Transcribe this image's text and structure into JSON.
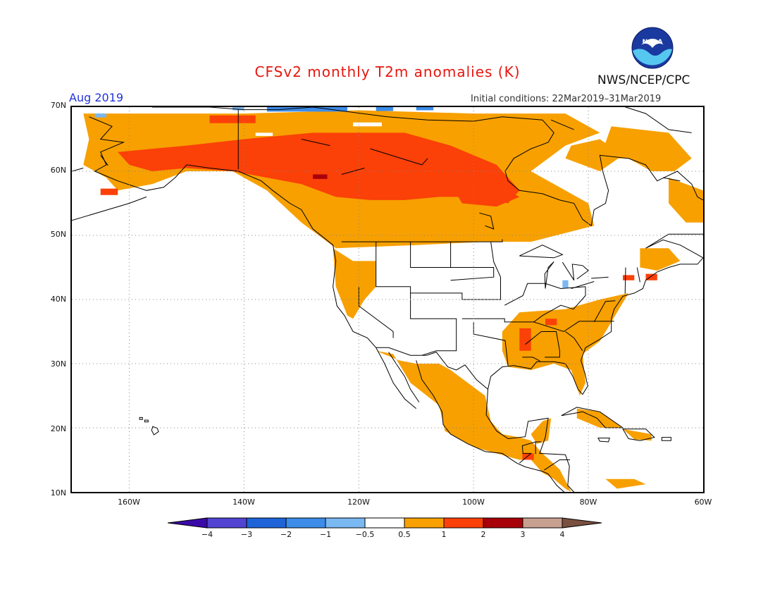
{
  "header": {
    "title": "CFSv2 monthly T2m anomalies (K)",
    "agency": "NWS/NCEP/CPC",
    "logo_text": "NOAA",
    "valid_month": "Aug 2019",
    "initial_conditions": "Initial conditions: 22Mar2019–31Mar2019"
  },
  "axes": {
    "lat_labels": [
      "70N",
      "60N",
      "50N",
      "40N",
      "30N",
      "20N",
      "10N"
    ],
    "lon_labels": [
      "160W",
      "140W",
      "120W",
      "100W",
      "80W",
      "60W"
    ]
  },
  "colorbar": {
    "labels": [
      "−4",
      "−3",
      "−2",
      "−1",
      "−0.5",
      "0.5",
      "1",
      "2",
      "3",
      "4"
    ],
    "colors": [
      "#3a0aa8",
      "#5144d2",
      "#1e64d8",
      "#3c8ce8",
      "#7ab8f2",
      "#ffffff",
      "#f7a000",
      "#fb4008",
      "#a80008",
      "#c8a090",
      "#7a5040"
    ]
  },
  "legend_colors": {
    "warm_05_1": "#f7a000",
    "warm_1_2": "#fb4008",
    "warm_2_3": "#a80008",
    "cool_05_1": "#7ab8f2",
    "cool_1_2": "#3c8ce8"
  }
}
